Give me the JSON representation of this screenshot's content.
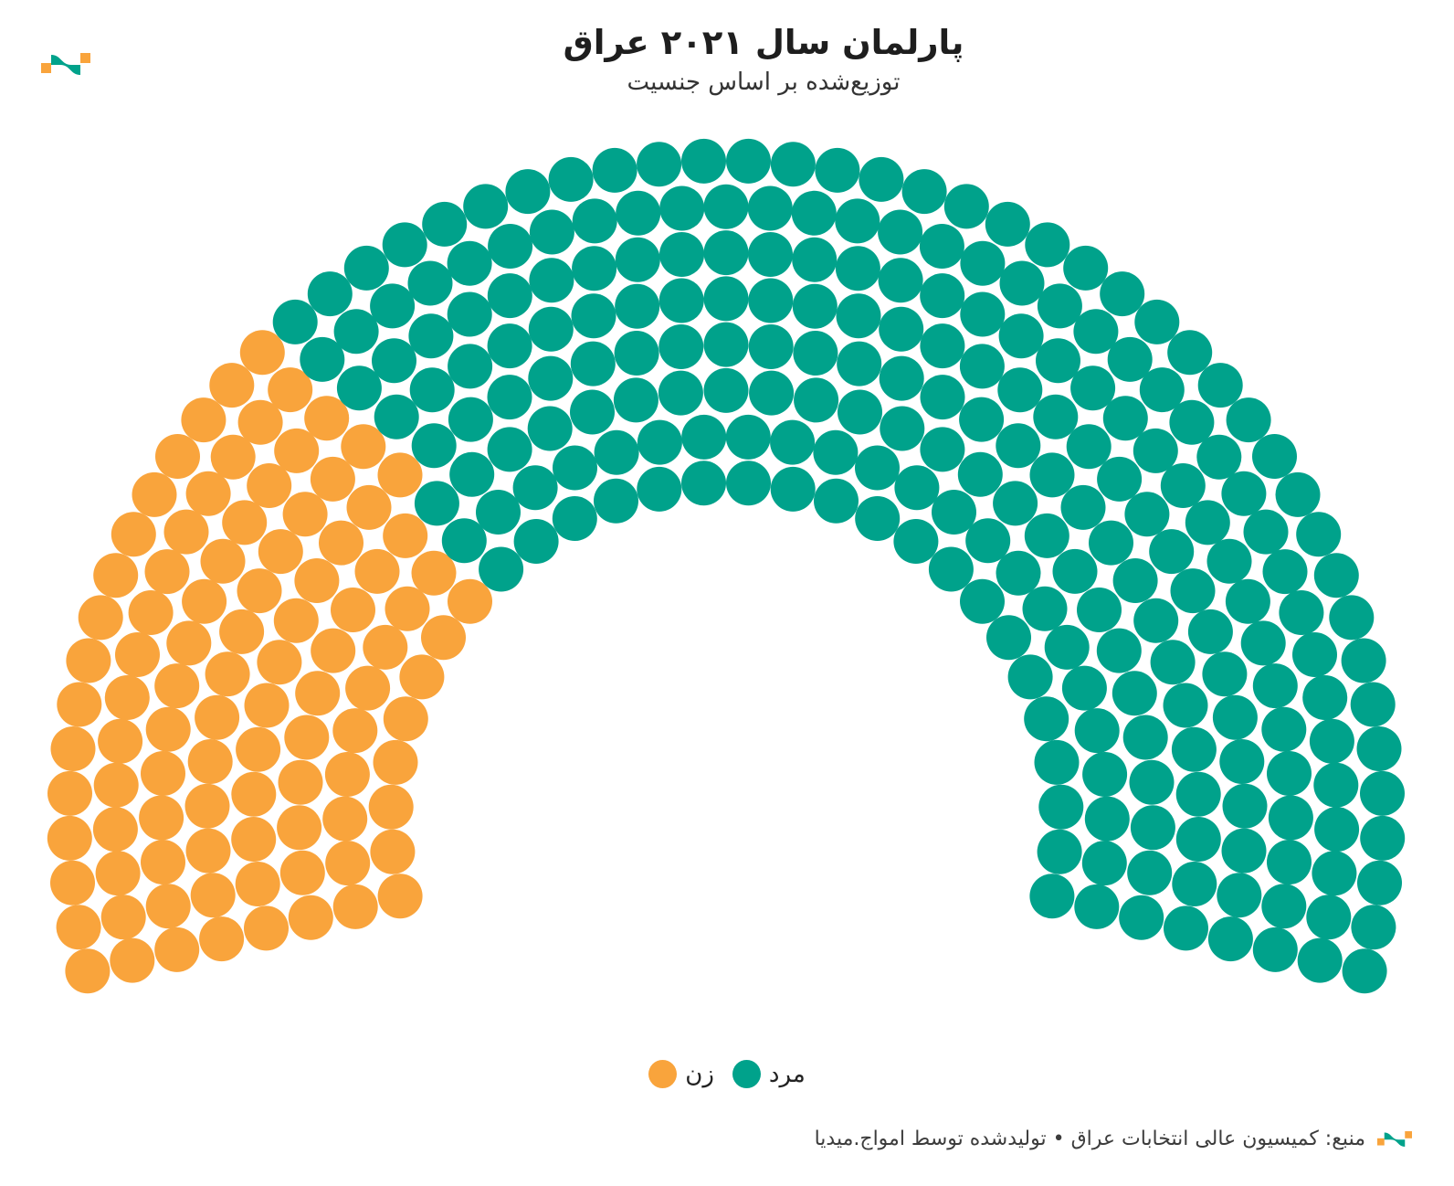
{
  "header": {
    "title": "پارلمان سال ۲۰۲۱ عراق",
    "subtitle": "توزیع‌شده بر اساس جنسیت"
  },
  "legend": [
    {
      "label": "زن",
      "color": "#F9A43C"
    },
    {
      "label": "مرد",
      "color": "#00A28B"
    }
  ],
  "footer": {
    "source_text": "منبع: کمیسیون عالی انتخابات عراق • تولیدشده توسط امواج.میدیا"
  },
  "icons": {
    "header_logo": "amwaj-media-logo",
    "footer_logo": "amwaj-media-logo-small"
  },
  "brand_colors": {
    "teal": "#00A28B",
    "orange": "#F9A43C"
  },
  "chart_data": {
    "type": "parliament",
    "title": "پارلمان سال ۲۰۲۱ عراق",
    "subtitle": "توزیع‌شده بر اساس جنسیت",
    "total_seats": 329,
    "series": [
      {
        "name": "زن",
        "value": 97,
        "color": "#F9A43C"
      },
      {
        "name": "مرد",
        "value": 232,
        "color": "#00A28B"
      }
    ],
    "legend_position": "bottom-center",
    "layout": {
      "rows": 8,
      "seats_per_row": [
        28,
        32,
        35,
        39,
        43,
        47,
        51,
        54
      ],
      "inner_radius": 367,
      "outer_radius": 719,
      "seat_radius": 24.5,
      "center": [
        795,
        895
      ],
      "start_angle_degrees": 193.5,
      "arc_span_degrees": 207,
      "fill_order": "women-from-left"
    }
  }
}
